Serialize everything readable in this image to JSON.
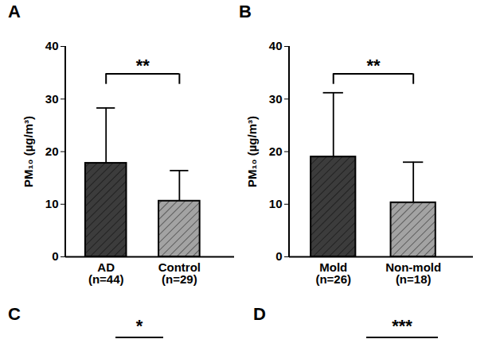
{
  "chart_data": [
    {
      "type": "bar",
      "title": "A",
      "categories": [
        "AD\n(n=44)",
        "Control\n(n=29)"
      ],
      "values": [
        17.8,
        10.6
      ],
      "errors": [
        10.5,
        5.8
      ],
      "colors": [
        "#3c3c3c",
        "#a3a3a3"
      ],
      "y_label": "PM₁₀ (µg/m³)",
      "ylim": [
        0,
        40
      ],
      "yticks": [
        0,
        10,
        20,
        30,
        40
      ],
      "grid": false,
      "significance": "**"
    },
    {
      "type": "bar",
      "title": "B",
      "categories": [
        "Mold\n(n=26)",
        "Non-mold\n(n=18)"
      ],
      "values": [
        19.0,
        10.3
      ],
      "errors": [
        12.2,
        7.7
      ],
      "colors": [
        "#3c3c3c",
        "#a3a3a3"
      ],
      "y_label": "PM₁₀ (µg/m³)",
      "ylim": [
        0,
        40
      ],
      "yticks": [
        0,
        10,
        20,
        30,
        40
      ],
      "grid": false,
      "significance": "**"
    }
  ],
  "other_panels": [
    {
      "title": "C",
      "significance": "*"
    },
    {
      "title": "D",
      "significance": "***"
    }
  ]
}
